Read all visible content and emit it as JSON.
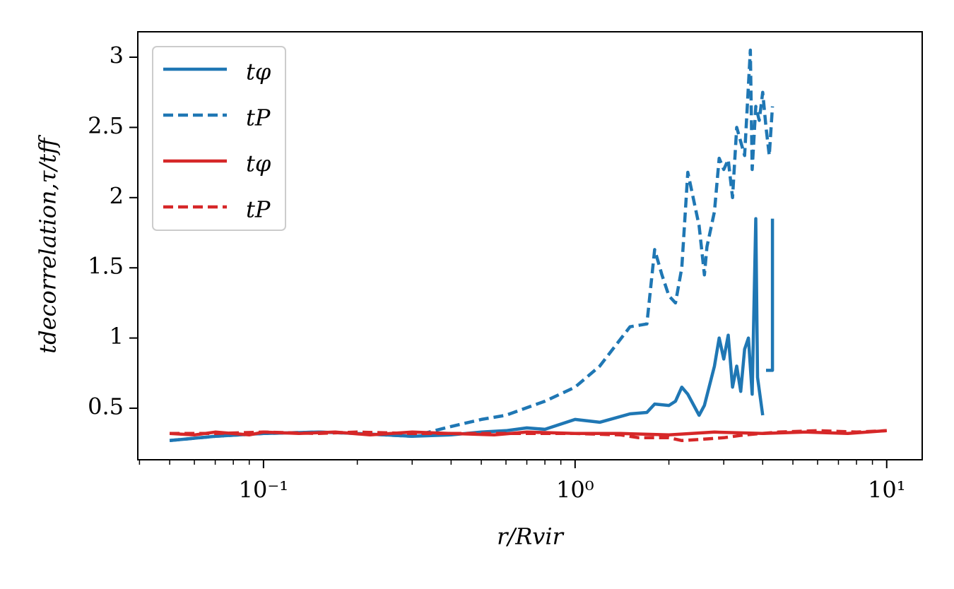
{
  "chart_data": {
    "type": "line",
    "xlabel": "r/Rvir",
    "ylabel": "tdecorrelation,τ/tff",
    "xscale": "log",
    "xlim": [
      0.0395,
      13.0
    ],
    "ylim": [
      0.133,
      3.181
    ],
    "xticks": [
      {
        "value": 0.1,
        "label": "10⁻¹"
      },
      {
        "value": 1,
        "label": "10⁰"
      },
      {
        "value": 10,
        "label": "10¹"
      }
    ],
    "yticks": [
      0.5,
      1.0,
      1.5,
      2.0,
      2.5,
      3.0
    ],
    "legend": "upper left",
    "series": [
      {
        "name": "tφ",
        "color": "#1f77b4",
        "linestyle": "solid",
        "x": [
          0.05,
          0.07,
          0.1,
          0.15,
          0.2,
          0.3,
          0.4,
          0.5,
          0.6,
          0.7,
          0.8,
          1.0,
          1.2,
          1.5,
          1.7,
          1.8,
          2.0,
          2.1,
          2.2,
          2.3,
          2.5,
          2.6,
          2.8,
          2.9,
          3.0,
          3.1,
          3.2,
          3.3,
          3.4,
          3.5,
          3.6,
          3.7,
          3.8,
          3.85,
          4.0,
          null,
          4.1,
          4.3,
          4.3
        ],
        "values": [
          0.27,
          0.3,
          0.32,
          0.33,
          0.32,
          0.3,
          0.31,
          0.33,
          0.34,
          0.36,
          0.35,
          0.42,
          0.4,
          0.46,
          0.47,
          0.53,
          0.52,
          0.55,
          0.65,
          0.6,
          0.45,
          0.52,
          0.8,
          1.0,
          0.85,
          1.02,
          0.65,
          0.8,
          0.62,
          0.92,
          1.0,
          0.6,
          1.85,
          0.72,
          0.45,
          null,
          0.77,
          0.77,
          1.85
        ]
      },
      {
        "name": "tP",
        "color": "#1f77b4",
        "linestyle": "dashed",
        "x": [
          0.05,
          0.07,
          0.1,
          0.15,
          0.2,
          0.3,
          0.4,
          0.5,
          0.6,
          0.8,
          1.0,
          1.2,
          1.5,
          1.7,
          1.8,
          1.9,
          2.0,
          2.1,
          2.2,
          2.3,
          2.5,
          2.6,
          2.65,
          2.8,
          2.9,
          3.0,
          3.1,
          3.2,
          3.3,
          3.5,
          3.65,
          3.7,
          3.8,
          3.9,
          4.0,
          4.1,
          4.2,
          4.3
        ],
        "values": [
          0.27,
          0.3,
          0.32,
          0.33,
          0.32,
          0.3,
          0.37,
          0.42,
          0.45,
          0.55,
          0.65,
          0.8,
          1.08,
          1.1,
          1.63,
          1.45,
          1.3,
          1.25,
          1.5,
          2.18,
          1.8,
          1.45,
          1.65,
          1.9,
          2.28,
          2.2,
          2.27,
          2.0,
          2.5,
          2.3,
          3.05,
          2.2,
          2.65,
          2.55,
          2.75,
          2.5,
          2.3,
          2.65
        ]
      },
      {
        "name": "tφ",
        "color": "#d62728",
        "linestyle": "solid",
        "x": [
          0.05,
          0.06,
          0.07,
          0.09,
          0.1,
          0.13,
          0.17,
          0.22,
          0.3,
          0.4,
          0.55,
          0.7,
          1.0,
          1.4,
          2.0,
          2.8,
          4.0,
          5.5,
          7.5,
          10.0
        ],
        "values": [
          0.32,
          0.31,
          0.33,
          0.31,
          0.33,
          0.32,
          0.33,
          0.31,
          0.33,
          0.32,
          0.31,
          0.33,
          0.32,
          0.32,
          0.31,
          0.33,
          0.32,
          0.33,
          0.32,
          0.34
        ]
      },
      {
        "name": "tP",
        "color": "#d62728",
        "linestyle": "dashed",
        "x": [
          0.05,
          0.07,
          0.1,
          0.15,
          0.2,
          0.3,
          0.5,
          0.7,
          1.0,
          1.4,
          1.6,
          2.0,
          2.2,
          2.6,
          3.0,
          3.5,
          4.5,
          6.0,
          8.0,
          10.0
        ],
        "values": [
          0.32,
          0.32,
          0.33,
          0.32,
          0.33,
          0.32,
          0.32,
          0.32,
          0.32,
          0.31,
          0.29,
          0.29,
          0.27,
          0.28,
          0.29,
          0.31,
          0.33,
          0.34,
          0.33,
          0.34
        ]
      }
    ]
  }
}
